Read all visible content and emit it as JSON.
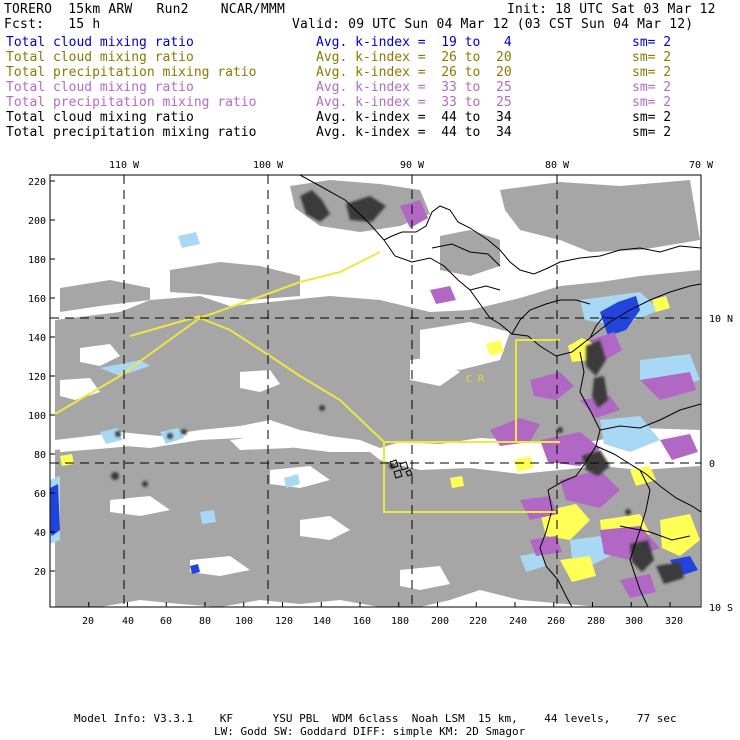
{
  "header": {
    "model": "TORERO",
    "resolution": "15km ARW",
    "run": "Run2",
    "org": "NCAR/MMM",
    "init": "Init: 18 UTC Sat 03 Mar 12",
    "fcst_label": "Fcst:",
    "fcst_value": "15 h",
    "valid": "Valid: 09 UTC Sun 04 Mar 12 (03 CST Sun 04 Mar 12)"
  },
  "fields": [
    {
      "name": "Total cloud mixing ratio",
      "range": "Avg. k-index =  19 to   4",
      "sm": "sm= 2",
      "color": "#0000cc"
    },
    {
      "name": "Total cloud mixing ratio",
      "range": "Avg. k-index =  26 to  20",
      "sm": "sm= 2",
      "color": "#8c7a00"
    },
    {
      "name": "Total precipitation mixing ratio",
      "range": "Avg. k-index =  26 to  20",
      "sm": "sm= 2",
      "color": "#8c7a00"
    },
    {
      "name": "Total cloud mixing ratio",
      "range": "Avg. k-index =  33 to  25",
      "sm": "sm= 2",
      "color": "#b36cc4"
    },
    {
      "name": "Total precipitation mixing ratio",
      "range": "Avg. k-index =  33 to  25",
      "sm": "sm= 2",
      "color": "#b36cc4"
    },
    {
      "name": "Total cloud mixing ratio",
      "range": "Avg. k-index =  44 to  34",
      "sm": "sm= 2",
      "color": "#000000"
    },
    {
      "name": "Total precipitation mixing ratio",
      "range": "Avg. k-index =  44 to  34",
      "sm": "sm= 2",
      "color": "#000000"
    }
  ],
  "map": {
    "top_lon_labels": [
      "110 W",
      "100 W",
      "90 W",
      "80 W",
      "70 W"
    ],
    "right_lat_labels": [
      "10 N",
      "0",
      "10 S"
    ],
    "x_ticks": [
      "20",
      "40",
      "60",
      "80",
      "100",
      "120",
      "140",
      "160",
      "180",
      "200",
      "220",
      "240",
      "260",
      "280",
      "300",
      "320"
    ],
    "y_ticks": [
      "220",
      "200",
      "180",
      "160",
      "140",
      "120",
      "100",
      "80",
      "60",
      "40",
      "20"
    ],
    "region_label": "C R",
    "colors": {
      "cloud_gray": "#a6a6a6",
      "cloud_dark": "#3a3a3a",
      "light_blue": "#a8d8f4",
      "blue": "#2244dd",
      "purple": "#b068c4",
      "yellow": "#ffff55",
      "box_line": "#f0e640"
    }
  },
  "footer": {
    "line1": "Model Info: V3.3.1    KF      YSU PBL  WDM 6class  Noah LSM  15 km,    44 levels,    77 sec",
    "line2": "LW: Godd SW: Goddard DIFF: simple KM: 2D Smagor"
  }
}
